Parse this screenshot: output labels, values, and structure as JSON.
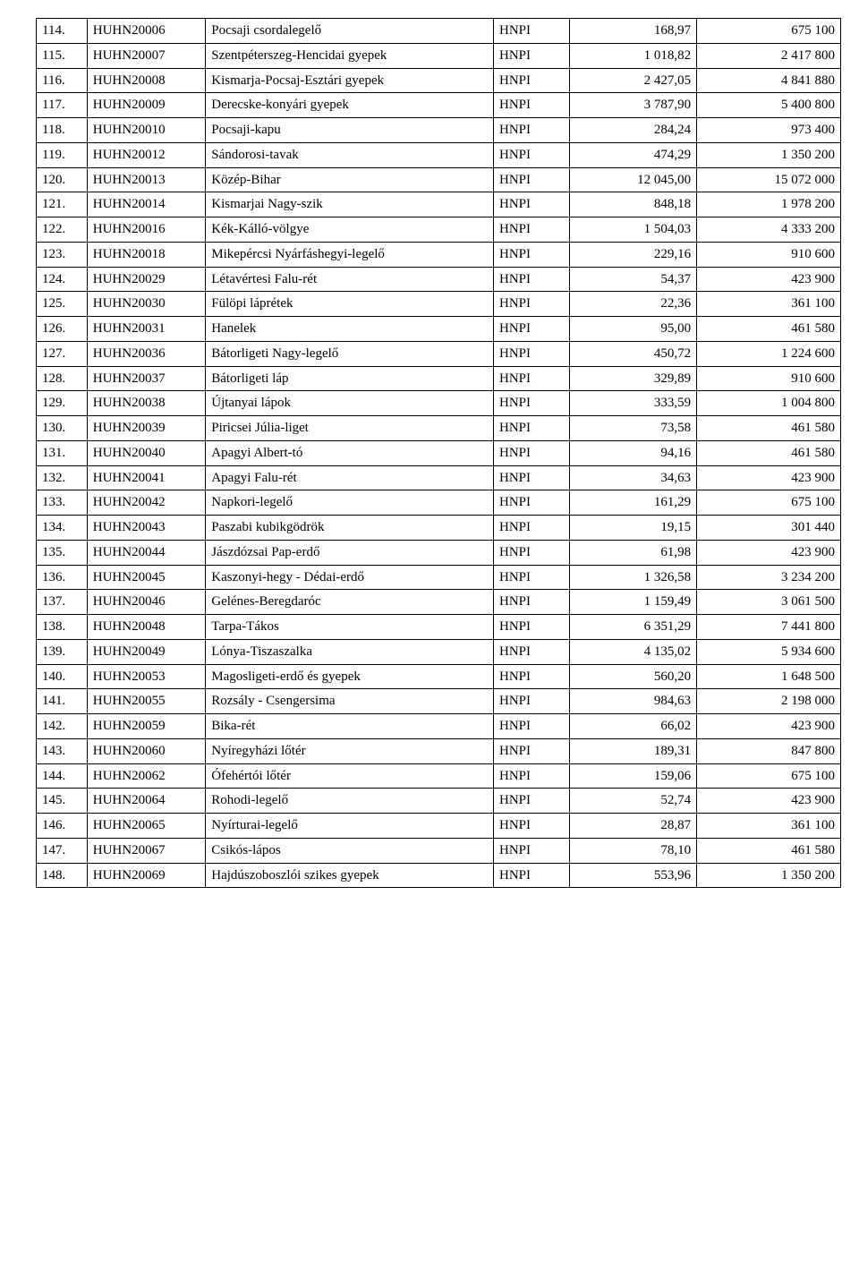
{
  "table": {
    "columns": [
      "idx",
      "code",
      "name",
      "org",
      "value1",
      "value2"
    ],
    "rows": [
      [
        "114.",
        "HUHN20006",
        "Pocsaji csordalegelő",
        "HNPI",
        "168,97",
        "675 100"
      ],
      [
        "115.",
        "HUHN20007",
        "Szentpéterszeg-Hencidai gyepek",
        "HNPI",
        "1 018,82",
        "2 417 800"
      ],
      [
        "116.",
        "HUHN20008",
        "Kismarja-Pocsaj-Esztári gyepek",
        "HNPI",
        "2 427,05",
        "4 841 880"
      ],
      [
        "117.",
        "HUHN20009",
        "Derecske-konyári gyepek",
        "HNPI",
        "3 787,90",
        "5 400 800"
      ],
      [
        "118.",
        "HUHN20010",
        "Pocsaji-kapu",
        "HNPI",
        "284,24",
        "973 400"
      ],
      [
        "119.",
        "HUHN20012",
        "Sándorosi-tavak",
        "HNPI",
        "474,29",
        "1 350 200"
      ],
      [
        "120.",
        "HUHN20013",
        "Közép-Bihar",
        "HNPI",
        "12 045,00",
        "15 072 000"
      ],
      [
        "121.",
        "HUHN20014",
        "Kismarjai Nagy-szik",
        "HNPI",
        "848,18",
        "1 978 200"
      ],
      [
        "122.",
        "HUHN20016",
        "Kék-Kálló-völgye",
        "HNPI",
        "1 504,03",
        "4 333 200"
      ],
      [
        "123.",
        "HUHN20018",
        "Mikepércsi Nyárfáshegyi-legelő",
        "HNPI",
        "229,16",
        "910 600"
      ],
      [
        "124.",
        "HUHN20029",
        "Létavértesi Falu-rét",
        "HNPI",
        "54,37",
        "423 900"
      ],
      [
        "125.",
        "HUHN20030",
        "Fülöpi láprétek",
        "HNPI",
        "22,36",
        "361 100"
      ],
      [
        "126.",
        "HUHN20031",
        "Hanelek",
        "HNPI",
        "95,00",
        "461 580"
      ],
      [
        "127.",
        "HUHN20036",
        "Bátorligeti Nagy-legelő",
        "HNPI",
        "450,72",
        "1 224 600"
      ],
      [
        "128.",
        "HUHN20037",
        "Bátorligeti láp",
        "HNPI",
        "329,89",
        "910 600"
      ],
      [
        "129.",
        "HUHN20038",
        "Újtanyai lápok",
        "HNPI",
        "333,59",
        "1 004 800"
      ],
      [
        "130.",
        "HUHN20039",
        "Piricsei Júlia-liget",
        "HNPI",
        "73,58",
        "461 580"
      ],
      [
        "131.",
        "HUHN20040",
        "Apagyi Albert-tó",
        "HNPI",
        "94,16",
        "461 580"
      ],
      [
        "132.",
        "HUHN20041",
        "Apagyi Falu-rét",
        "HNPI",
        "34,63",
        "423 900"
      ],
      [
        "133.",
        "HUHN20042",
        "Napkori-legelő",
        "HNPI",
        "161,29",
        "675 100"
      ],
      [
        "134.",
        "HUHN20043",
        "Paszabi kubikgödrök",
        "HNPI",
        "19,15",
        "301 440"
      ],
      [
        "135.",
        "HUHN20044",
        "Jászdózsai Pap-erdő",
        "HNPI",
        "61,98",
        "423 900"
      ],
      [
        "136.",
        "HUHN20045",
        "Kaszonyi-hegy - Dédai-erdő",
        "HNPI",
        "1 326,58",
        "3 234 200"
      ],
      [
        "137.",
        "HUHN20046",
        "Gelénes-Beregdaróc",
        "HNPI",
        "1 159,49",
        "3 061 500"
      ],
      [
        "138.",
        "HUHN20048",
        "Tarpa-Tákos",
        "HNPI",
        "6 351,29",
        "7 441 800"
      ],
      [
        "139.",
        "HUHN20049",
        "Lónya-Tiszaszalka",
        "HNPI",
        "4 135,02",
        "5 934 600"
      ],
      [
        "140.",
        "HUHN20053",
        "Magosligeti-erdő és gyepek",
        "HNPI",
        "560,20",
        "1 648 500"
      ],
      [
        "141.",
        "HUHN20055",
        "Rozsály - Csengersima",
        "HNPI",
        "984,63",
        "2 198 000"
      ],
      [
        "142.",
        "HUHN20059",
        "Bika-rét",
        "HNPI",
        "66,02",
        "423 900"
      ],
      [
        "143.",
        "HUHN20060",
        "Nyíregyházi lőtér",
        "HNPI",
        "189,31",
        "847 800"
      ],
      [
        "144.",
        "HUHN20062",
        "Ófehértói lőtér",
        "HNPI",
        "159,06",
        "675 100"
      ],
      [
        "145.",
        "HUHN20064",
        "Rohodi-legelő",
        "HNPI",
        "52,74",
        "423 900"
      ],
      [
        "146.",
        "HUHN20065",
        "Nyírturai-legelő",
        "HNPI",
        "28,87",
        "361 100"
      ],
      [
        "147.",
        "HUHN20067",
        "Csikós-lápos",
        "HNPI",
        "78,10",
        "461 580"
      ],
      [
        "148.",
        "HUHN20069",
        "Hajdúszoboszlói szikes gyepek",
        "HNPI",
        "553,96",
        "1 350 200"
      ]
    ]
  }
}
